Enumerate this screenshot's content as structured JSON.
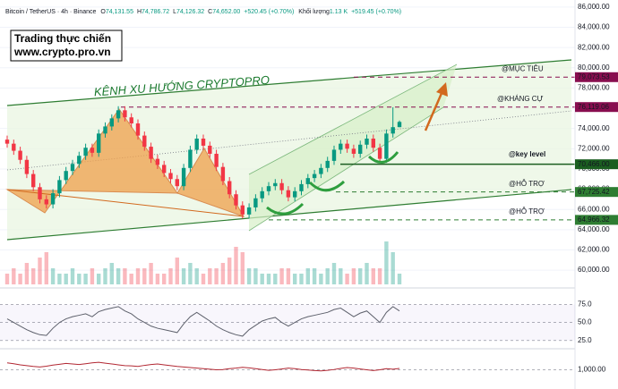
{
  "chart_data": [
    {
      "type": "candlestick",
      "header": {
        "symbol": "Bitcoin / TetherUS · 4h · Binance",
        "ohlc": [
          {
            "key": "O",
            "value": "74,131.55"
          },
          {
            "key": "H",
            "value": "74,786.72"
          },
          {
            "key": "L",
            "value": "74,126.32"
          },
          {
            "key": "C",
            "value": "74,652.00"
          }
        ],
        "change": "+520.45 (+0.70%)",
        "volume_label": "Khối lượng",
        "volume_value": "1.13 K",
        "volume_change": "+519.45 (+0.70%)"
      },
      "note": [
        "Trading thực chiến",
        "www.crypto.pro.vn"
      ],
      "channel_label": "KÊNH XU HƯỚNG CRYPTOPRO",
      "up_color": "#089981",
      "down_color": "#f23645",
      "grid": true,
      "ylim": [
        59300,
        86700
      ],
      "yticks": [
        {
          "value": 86000,
          "label": "86,000.00"
        },
        {
          "value": 84000,
          "label": "84,000.00"
        },
        {
          "value": 82000,
          "label": "82,000.00"
        },
        {
          "value": 80000,
          "label": "80,000.00"
        },
        {
          "value": 78000,
          "label": "78,000.00"
        },
        {
          "value": 76000,
          "label": "76,000.00"
        },
        {
          "value": 74000,
          "label": "74,000.00"
        },
        {
          "value": 72000,
          "label": "72,000.00"
        },
        {
          "value": 70000,
          "label": "70,000.00"
        },
        {
          "value": 68000,
          "label": "68,000.00"
        },
        {
          "value": 66000,
          "label": "66,000.00"
        },
        {
          "value": 64000,
          "label": "64,000.00"
        },
        {
          "value": 62000,
          "label": "62,000.00"
        },
        {
          "value": 60000,
          "label": "60,000.00"
        }
      ],
      "levels": [
        {
          "name": "@MỤC TIÊU",
          "value": 79073.53,
          "label": "79,073.53",
          "color": "#880e4f",
          "style": "dashed"
        },
        {
          "name": "@KHÁNG CỰ",
          "value": 76119.06,
          "label": "76,119.06",
          "color": "#880e4f",
          "style": "dashed"
        },
        {
          "name": "@key level",
          "value": 70466.0,
          "label": "70,466.00",
          "color": "#1b5e20",
          "style": "solid"
        },
        {
          "name": "@HỖ TRỢ",
          "value": 67725.42,
          "label": "67,725.42",
          "color": "#2e7d32",
          "style": "dashed"
        },
        {
          "name": "@HỖ TRỢ",
          "value": 64966.32,
          "label": "64,966.32",
          "color": "#2e7d32",
          "style": "dashed"
        }
      ],
      "open": [
        72900,
        72500,
        71800,
        70900,
        69500,
        68200,
        67000,
        66500,
        67600,
        68900,
        69800,
        70500,
        71300,
        72100,
        71600,
        73500,
        74200,
        75000,
        75800,
        75100,
        74500,
        73300,
        72200,
        71000,
        70400,
        69600,
        69000,
        68300,
        70100,
        71900,
        73000,
        72300,
        71500,
        70200,
        68800,
        67500,
        66400,
        65500,
        66200,
        67100,
        67800,
        68300,
        68600,
        67900,
        67200,
        67800,
        68500,
        69100,
        69500,
        70100,
        70800,
        71900,
        72500,
        72000,
        71500,
        72400,
        73000,
        72100,
        71000,
        73500,
        74131.55
      ],
      "high": [
        73300,
        72900,
        72200,
        71300,
        69900,
        68600,
        67400,
        68000,
        69300,
        70200,
        70900,
        71700,
        72500,
        72500,
        73900,
        74600,
        75400,
        76200,
        76200,
        75500,
        74900,
        73700,
        72600,
        71400,
        70800,
        70000,
        69400,
        70500,
        72300,
        73400,
        73400,
        72700,
        71900,
        70600,
        69200,
        67900,
        66800,
        66600,
        67500,
        68200,
        68700,
        69000,
        69000,
        68300,
        68200,
        68900,
        69500,
        69900,
        70500,
        71200,
        72300,
        72900,
        72900,
        72400,
        72800,
        73400,
        73400,
        72500,
        73900,
        76100,
        74786.72
      ],
      "low": [
        72100,
        71400,
        70500,
        69100,
        67800,
        66600,
        66100,
        66100,
        67200,
        68500,
        69400,
        70100,
        70900,
        71200,
        71200,
        73100,
        73800,
        74600,
        74700,
        74100,
        72900,
        71800,
        70600,
        70000,
        69200,
        68600,
        67900,
        67900,
        69700,
        71500,
        71900,
        71100,
        69800,
        68400,
        67100,
        66000,
        65100,
        65100,
        65800,
        66700,
        67400,
        67900,
        67500,
        66800,
        66800,
        67400,
        68100,
        68700,
        69100,
        69700,
        70400,
        71500,
        71600,
        71100,
        71100,
        72000,
        71700,
        70600,
        70600,
        73100,
        74126.32
      ],
      "close": [
        72500,
        71800,
        70900,
        69500,
        68200,
        67000,
        66500,
        67600,
        68900,
        69800,
        70500,
        71300,
        72100,
        71600,
        73500,
        74200,
        75000,
        75800,
        75100,
        74500,
        73300,
        72200,
        71000,
        70400,
        69600,
        69000,
        68300,
        70100,
        71900,
        73000,
        72300,
        71500,
        70200,
        68800,
        67500,
        66400,
        65500,
        66200,
        67100,
        67800,
        68300,
        68600,
        67900,
        67200,
        67800,
        68500,
        69100,
        69500,
        70100,
        70800,
        71900,
        72500,
        72000,
        71500,
        72400,
        73000,
        72100,
        71000,
        73500,
        74131.55,
        74652.0
      ],
      "volume": [
        2,
        3,
        2,
        4,
        3,
        5,
        6,
        3,
        2,
        2,
        3,
        2,
        2,
        3,
        2,
        3,
        4,
        3,
        3,
        2,
        3,
        3,
        4,
        2,
        2,
        3,
        5,
        3,
        4,
        3,
        2,
        3,
        3,
        4,
        5,
        7,
        6,
        3,
        3,
        2,
        2,
        2,
        3,
        3,
        2,
        2,
        3,
        3,
        2,
        3,
        4,
        3,
        2,
        3,
        3,
        4,
        3,
        3,
        8,
        6,
        2
      ]
    },
    {
      "type": "line",
      "color": "#5d606b",
      "ylim": [
        16,
        88
      ],
      "yticks": [
        {
          "value": 75,
          "label": "75.0"
        },
        {
          "value": 50,
          "label": "50.0"
        },
        {
          "value": 25,
          "label": "25.0"
        }
      ],
      "values": [
        55,
        50,
        45,
        40,
        36,
        33,
        32,
        42,
        50,
        55,
        58,
        60,
        62,
        58,
        65,
        68,
        70,
        72,
        66,
        62,
        55,
        50,
        45,
        42,
        40,
        38,
        36,
        48,
        58,
        64,
        58,
        52,
        45,
        40,
        36,
        33,
        31,
        40,
        46,
        52,
        55,
        57,
        50,
        45,
        50,
        55,
        58,
        60,
        62,
        64,
        68,
        70,
        64,
        58,
        63,
        66,
        58,
        50,
        64,
        72,
        66
      ]
    },
    {
      "type": "line",
      "color": "#b22833",
      "ylim": [
        400,
        1600
      ],
      "yticks": [
        {
          "value": 1000,
          "label": "1,000.00"
        }
      ],
      "values": [
        1250,
        1220,
        1180,
        1150,
        1120,
        1100,
        1130,
        1170,
        1200,
        1230,
        1210,
        1190,
        1220,
        1250,
        1270,
        1240,
        1210,
        1180,
        1150,
        1140,
        1120,
        1160,
        1190,
        1210,
        1180,
        1150,
        1120,
        1100,
        1080,
        1060,
        1040,
        1020,
        1000,
        1010,
        1040,
        1060,
        1090,
        1070,
        1040,
        1010,
        980,
        1000,
        1030,
        1060,
        1040,
        1010,
        990,
        970,
        960,
        980,
        1010,
        1050,
        1080,
        1060,
        1030,
        1000,
        970,
        1000,
        1040,
        1020,
        1050
      ]
    }
  ]
}
